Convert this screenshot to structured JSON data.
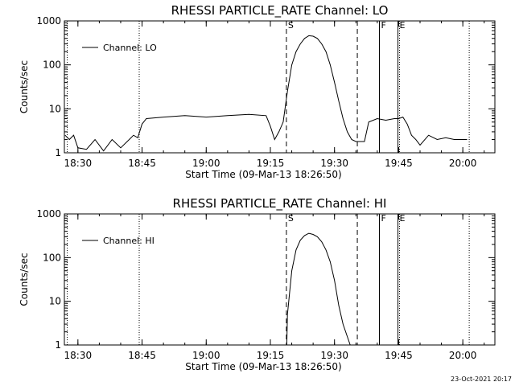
{
  "footer": {
    "timestamp": "23-Oct-2021 20:17"
  },
  "chart_data": [
    {
      "type": "line",
      "title": "RHESSI PARTICLE_RATE Channel: LO",
      "xlabel": "Start Time (09-Mar-13 18:26:50)",
      "ylabel": "Counts/sec",
      "yscale": "log",
      "ylim": [
        1,
        1000
      ],
      "xlim": [
        "18:26:50",
        "20:07:30"
      ],
      "x_ticks": [
        "18:30",
        "18:45",
        "19:00",
        "19:15",
        "19:30",
        "19:45",
        "20:00"
      ],
      "y_ticks": [
        "1",
        "10",
        "100",
        "1000"
      ],
      "legend": "top-left",
      "series": [
        {
          "name": "Channel: LO",
          "x": [
            "18:27",
            "18:28",
            "18:29",
            "18:30",
            "18:32",
            "18:34",
            "18:36",
            "18:38",
            "18:40",
            "18:42",
            "18:43",
            "18:44",
            "18:45",
            "18:46",
            "18:50",
            "18:55",
            "19:00",
            "19:05",
            "19:10",
            "19:14",
            "19:15",
            "19:16",
            "19:17",
            "19:18",
            "19:19",
            "19:20",
            "19:21",
            "19:22",
            "19:23",
            "19:24",
            "19:25",
            "19:26",
            "19:27",
            "19:28",
            "19:29",
            "19:30",
            "19:31",
            "19:32",
            "19:33",
            "19:34",
            "19:35",
            "19:36",
            "19:37",
            "19:38",
            "19:40",
            "19:42",
            "19:44",
            "19:45",
            "19:46",
            "19:47",
            "19:48",
            "19:49",
            "19:50",
            "19:52",
            "19:54",
            "19:56",
            "19:58",
            "20:00",
            "20:01"
          ],
          "values": [
            2.5,
            2,
            2.5,
            1.3,
            1.2,
            2,
            1.1,
            2,
            1.3,
            2,
            2.5,
            2.2,
            4.5,
            6,
            6.5,
            7,
            6.5,
            7,
            7.5,
            7,
            4,
            2,
            3,
            5,
            25,
            100,
            200,
            300,
            400,
            460,
            450,
            400,
            300,
            200,
            100,
            40,
            15,
            6,
            3,
            2,
            1.8,
            1.8,
            1.8,
            5,
            6,
            5.5,
            6,
            6,
            6.5,
            4.5,
            2.5,
            2,
            1.5,
            2.5,
            2,
            2.2,
            2,
            2,
            2
          ]
        }
      ],
      "markers": [
        {
          "label": "S",
          "x": "19:18:45",
          "style": "dashed"
        },
        {
          "label": "",
          "x": "19:35:20",
          "style": "dashed"
        },
        {
          "label": "F",
          "x": "19:40:30",
          "style": "solid"
        },
        {
          "label": "E",
          "x": "19:44:50",
          "style": "double"
        },
        {
          "label": "",
          "x": "18:44:20",
          "style": "dotted"
        },
        {
          "label": "",
          "x": "20:01:30",
          "style": "dotted"
        },
        {
          "label": "",
          "x": "18:27:30",
          "style": "dotted"
        }
      ]
    },
    {
      "type": "line",
      "title": "RHESSI PARTICLE_RATE Channel: HI",
      "xlabel": "Start Time (09-Mar-13 18:26:50)",
      "ylabel": "Counts/sec",
      "yscale": "log",
      "ylim": [
        1,
        1000
      ],
      "xlim": [
        "18:26:50",
        "20:07:30"
      ],
      "x_ticks": [
        "18:30",
        "18:45",
        "19:00",
        "19:15",
        "19:30",
        "19:45",
        "20:00"
      ],
      "y_ticks": [
        "1",
        "10",
        "100",
        "1000"
      ],
      "legend": "top-left",
      "series": [
        {
          "name": "Channel: HI",
          "x": [
            "19:18:50",
            "19:19",
            "19:20",
            "19:21",
            "19:22",
            "19:23",
            "19:24",
            "19:25",
            "19:26",
            "19:27",
            "19:28",
            "19:29",
            "19:30",
            "19:31",
            "19:32",
            "19:33:40"
          ],
          "values": [
            1,
            5,
            50,
            150,
            250,
            320,
            360,
            340,
            300,
            230,
            150,
            80,
            30,
            8,
            3,
            1
          ]
        }
      ],
      "markers": [
        {
          "label": "S",
          "x": "19:18:45",
          "style": "dashed"
        },
        {
          "label": "",
          "x": "19:35:20",
          "style": "dashed"
        },
        {
          "label": "F",
          "x": "19:40:30",
          "style": "solid"
        },
        {
          "label": "E",
          "x": "19:44:50",
          "style": "double"
        },
        {
          "label": "",
          "x": "18:44:20",
          "style": "dotted"
        },
        {
          "label": "",
          "x": "20:01:30",
          "style": "dotted"
        },
        {
          "label": "",
          "x": "18:27:30",
          "style": "dotted"
        }
      ]
    }
  ]
}
